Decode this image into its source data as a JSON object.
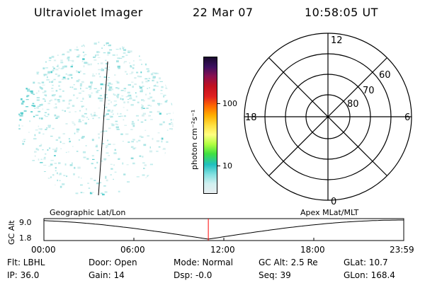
{
  "header": {
    "instrument": "Ultraviolet Imager",
    "date": "22 Mar 07",
    "time": "10:58:05 UT"
  },
  "colorbar": {
    "unit_label": "photon cm⁻²s⁻¹",
    "ticks": [
      "100",
      "10"
    ],
    "colors": [
      "#1a0a2e",
      "#3c1060",
      "#8a1050",
      "#c01020",
      "#e02020",
      "#ff6a00",
      "#ffb000",
      "#ffe040",
      "#ffff80",
      "#b0ff40",
      "#40e040",
      "#20c0c0",
      "#80e0e0",
      "#d0f0f0",
      "#e8eef0"
    ]
  },
  "polar_grid": {
    "mlt_labels": {
      "top": "12",
      "left": "18",
      "right": "6",
      "bottom": "0"
    },
    "lat_labels": [
      "60",
      "70",
      "80"
    ]
  },
  "timeline": {
    "axis_label": "GC Alt",
    "ymax": "9.0",
    "ymin": "1.8",
    "left_caption": "Geographic Lat/Lon",
    "right_caption": "Apex MLat/MLT",
    "current_fraction": 0.4568,
    "ticks": [
      "00:00",
      "06:00",
      "12:00",
      "18:00",
      "23:59"
    ]
  },
  "info": {
    "flt": "Flt: LBHL",
    "ip": "IP: 36.0",
    "door": "Door: Open",
    "gain": "Gain: 14",
    "mode": "Mode: Normal",
    "dsp": "Dsp:   -0.0",
    "gcalt": "GC Alt: 2.5 Re",
    "seq": "Seq: 39",
    "glat": "GLat:  10.7",
    "glon": "GLon: 168.4"
  }
}
